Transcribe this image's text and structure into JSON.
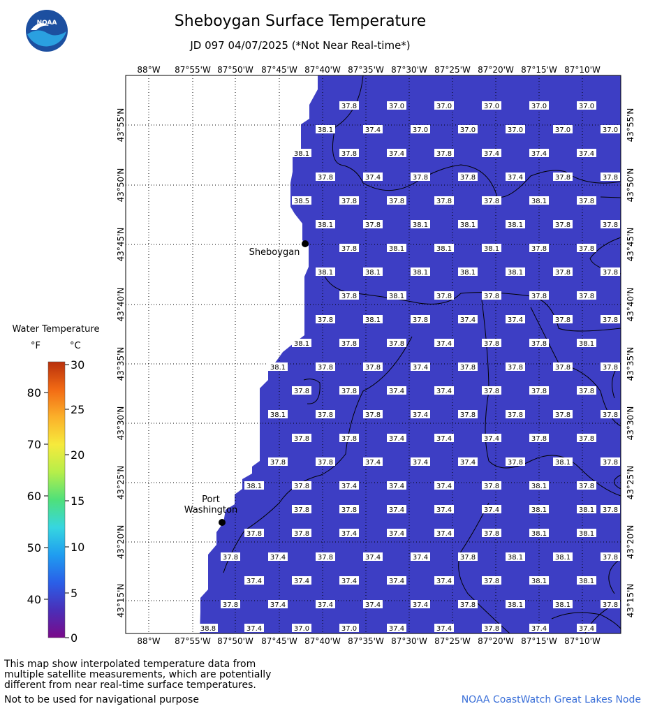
{
  "title": "Sheboygan Surface Temperature",
  "subtitle": "JD 097 04/07/2025 (*Not Near Real-time*)",
  "logo": {
    "text": "NOAA",
    "colors": {
      "outer": "#1c4fa0",
      "inner": "#2aa0e0",
      "bird": "#ffffff"
    }
  },
  "map": {
    "lon_labels": [
      "88°W",
      "87°55'W",
      "87°50'W",
      "87°45'W",
      "87°40'W",
      "87°35'W",
      "87°30'W",
      "87°25'W",
      "87°20'W",
      "87°15'W",
      "87°10'W"
    ],
    "lat_labels": [
      "43°55'N",
      "43°50'N",
      "43°45'N",
      "43°40'N",
      "43°35'N",
      "43°30'N",
      "43°25'N",
      "43°20'N",
      "43°15'N"
    ],
    "water_color": "#3d3ec4",
    "land_color": "#ffffff",
    "cities": [
      {
        "name": "Sheboygan",
        "label": "Sheboygan"
      },
      {
        "name": "Port Washington",
        "label": "Port\nWashington"
      }
    ],
    "grid_rows": [
      [
        "",
        "",
        "",
        "",
        "",
        "37.8",
        "",
        "37.0",
        "",
        "37.0",
        "",
        "37.0",
        "",
        "37.0",
        "",
        "37.0",
        ""
      ],
      [
        "",
        "",
        "",
        "",
        "38.1",
        "",
        "37.4",
        "",
        "37.0",
        "",
        "37.0",
        "",
        "37.0",
        "",
        "37.0",
        "",
        "37.0"
      ],
      [
        "",
        "",
        "",
        "38.1",
        "",
        "37.8",
        "",
        "37.4",
        "",
        "37.8",
        "",
        "37.4",
        "",
        "37.4",
        "",
        "37.4",
        ""
      ],
      [
        "",
        "",
        "",
        "",
        "37.8",
        "",
        "37.4",
        "",
        "37.8",
        "",
        "37.8",
        "",
        "37.4",
        "",
        "37.8",
        "",
        "37.8"
      ],
      [
        "",
        "",
        "",
        "38.5",
        "",
        "37.8",
        "",
        "37.8",
        "",
        "37.8",
        "",
        "37.8",
        "",
        "38.1",
        "",
        "37.8",
        ""
      ],
      [
        "",
        "",
        "",
        "",
        "38.1",
        "",
        "37.8",
        "",
        "38.1",
        "",
        "38.1",
        "",
        "38.1",
        "",
        "37.8",
        "",
        "37.8"
      ],
      [
        "",
        "",
        "",
        "",
        "",
        "37.8",
        "",
        "38.1",
        "",
        "38.1",
        "",
        "38.1",
        "",
        "37.8",
        "",
        "37.8",
        ""
      ],
      [
        "",
        "",
        "",
        "",
        "38.1",
        "",
        "38.1",
        "",
        "38.1",
        "",
        "38.1",
        "",
        "38.1",
        "",
        "37.8",
        "",
        "37.8"
      ],
      [
        "",
        "",
        "",
        "",
        "",
        "37.8",
        "",
        "38.1",
        "",
        "37.8",
        "",
        "37.8",
        "",
        "37.8",
        "",
        "37.8",
        ""
      ],
      [
        "",
        "",
        "",
        "",
        "37.8",
        "",
        "38.1",
        "",
        "37.8",
        "",
        "37.4",
        "",
        "37.4",
        "",
        "37.8",
        "",
        "37.8"
      ],
      [
        "",
        "",
        "",
        "38.1",
        "",
        "37.8",
        "",
        "37.8",
        "",
        "37.4",
        "",
        "37.8",
        "",
        "37.8",
        "",
        "38.1",
        ""
      ],
      [
        "",
        "",
        "38.1",
        "",
        "37.8",
        "",
        "37.8",
        "",
        "37.4",
        "",
        "37.8",
        "",
        "37.8",
        "",
        "37.8",
        "",
        "37.8"
      ],
      [
        "",
        "",
        "",
        "37.8",
        "",
        "37.8",
        "",
        "37.4",
        "",
        "37.4",
        "",
        "37.8",
        "",
        "37.8",
        "",
        "37.8",
        ""
      ],
      [
        "",
        "",
        "38.1",
        "",
        "37.8",
        "",
        "37.8",
        "",
        "37.4",
        "",
        "37.8",
        "",
        "37.8",
        "",
        "37.8",
        "",
        "37.8"
      ],
      [
        "",
        "",
        "",
        "37.8",
        "",
        "37.8",
        "",
        "37.4",
        "",
        "37.4",
        "",
        "37.4",
        "",
        "37.8",
        "",
        "37.8",
        ""
      ],
      [
        "",
        "",
        "37.8",
        "",
        "37.8",
        "",
        "37.4",
        "",
        "37.4",
        "",
        "37.4",
        "",
        "37.8",
        "",
        "38.1",
        "",
        "37.8"
      ],
      [
        "",
        "38.1",
        "",
        "37.8",
        "",
        "37.4",
        "",
        "37.4",
        "",
        "37.4",
        "",
        "37.8",
        "",
        "38.1",
        "",
        "37.8",
        ""
      ],
      [
        "",
        "",
        "",
        "37.8",
        "",
        "37.8",
        "",
        "37.4",
        "",
        "37.4",
        "",
        "37.4",
        "",
        "38.1",
        "",
        "38.1",
        "37.8"
      ],
      [
        "",
        "37.8",
        "",
        "37.8",
        "",
        "37.4",
        "",
        "37.4",
        "",
        "37.4",
        "",
        "37.8",
        "",
        "38.1",
        "",
        "38.1",
        ""
      ],
      [
        "37.8",
        "",
        "37.4",
        "",
        "37.8",
        "",
        "37.4",
        "",
        "37.4",
        "",
        "37.8",
        "",
        "38.1",
        "",
        "38.1",
        "",
        "37.8"
      ],
      [
        "",
        "37.4",
        "",
        "37.4",
        "",
        "37.4",
        "",
        "37.4",
        "",
        "37.4",
        "",
        "37.8",
        "",
        "38.1",
        "",
        "38.1",
        ""
      ],
      [
        "37.8",
        "",
        "37.4",
        "",
        "37.4",
        "",
        "37.4",
        "",
        "37.4",
        "",
        "37.8",
        "",
        "38.1",
        "",
        "38.1",
        "",
        "37.8"
      ],
      [
        "",
        "37.4",
        "",
        "37.0",
        "",
        "37.0",
        "",
        "37.4",
        "",
        "37.4",
        "",
        "37.8",
        "",
        "37.4",
        "",
        "37.4",
        ""
      ]
    ],
    "extra_labels": [
      "38.8"
    ]
  },
  "legend": {
    "title": "Water Temperature",
    "unit_f": "°F",
    "unit_c": "°C",
    "f_ticks": [
      "80",
      "70",
      "60",
      "50",
      "40"
    ],
    "c_ticks": [
      "30",
      "25",
      "20",
      "15",
      "10",
      "5",
      "0"
    ],
    "colors": [
      "#7a0a8a",
      "#4a2fb8",
      "#2a5fe8",
      "#1f9df0",
      "#36d6e0",
      "#4fe07a",
      "#b6ee4a",
      "#f6ea3c",
      "#fbb02a",
      "#f26a14",
      "#b8300c"
    ]
  },
  "footer": {
    "note": "This map show interpolated temperature data from\nmultiple satellite measurements, which are potentially\ndifferent from near real-time surface temperatures.",
    "nav": "Not to be used for navigational purpose",
    "credit": "NOAA CoastWatch Great Lakes Node"
  }
}
